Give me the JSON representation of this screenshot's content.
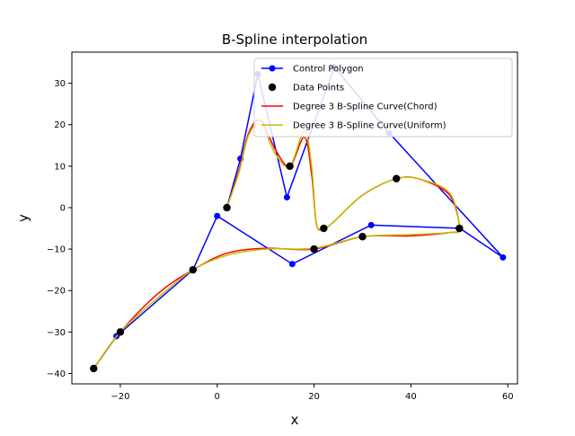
{
  "chart_data": {
    "type": "line",
    "title": "B-Spline interpolation",
    "xlabel": "x",
    "ylabel": "y",
    "xlim": [
      -30,
      62
    ],
    "ylim": [
      -42.5,
      37.5
    ],
    "xticks": [
      -20,
      0,
      20,
      40,
      60
    ],
    "yticks": [
      -40,
      -30,
      -20,
      -10,
      0,
      10,
      20,
      30
    ],
    "grid": false,
    "legend_position": "top-right",
    "series": [
      {
        "name": "Control Polygon",
        "kind": "line-marker",
        "color": "#0000ff",
        "x": [
          -25.5,
          -20.8,
          -5.0,
          0.0,
          15.5,
          31.8,
          50.1,
          59.0,
          35.5,
          24.2,
          14.4,
          8.4,
          4.8,
          2.0
        ],
        "y": [
          -38.8,
          -31.0,
          -15.0,
          -2.0,
          -13.6,
          -4.2,
          -5.0,
          -12.0,
          18.0,
          33.9,
          2.5,
          32.2,
          11.8,
          0.0
        ]
      },
      {
        "name": "Data Points",
        "kind": "scatter",
        "color": "#000000",
        "x": [
          -25.5,
          -20.0,
          -5.0,
          20.0,
          30.0,
          50.0,
          37.0,
          22.0,
          15.0,
          2.0
        ],
        "y": [
          -38.8,
          -30.0,
          -15.0,
          -10.0,
          -7.0,
          -5.0,
          7.0,
          -5.0,
          10.0,
          0.0
        ]
      },
      {
        "name": "Degree 3 B-Spline Curve(Chord)",
        "kind": "line",
        "color": "#ff0000",
        "x": [
          -25.5,
          -20.0,
          -12.0,
          -5.0,
          2.0,
          10.0,
          20.0,
          30.0,
          40.0,
          48.0,
          50.0,
          48.0,
          42.0,
          37.0,
          30.0,
          24.0,
          22.0,
          20.5,
          19.5,
          18.0,
          15.0,
          12.0,
          9.0,
          6.5,
          4.5,
          2.0
        ],
        "y": [
          -38.8,
          -30.0,
          -20.5,
          -15.0,
          -11.0,
          -9.8,
          -10.0,
          -7.0,
          -6.8,
          -6.0,
          -5.0,
          3.0,
          6.8,
          7.0,
          3.0,
          -3.5,
          -5.0,
          -4.0,
          8.0,
          17.0,
          10.0,
          14.0,
          21.0,
          18.0,
          9.0,
          0.0
        ]
      },
      {
        "name": "Degree 3 B-Spline Curve(Uniform)",
        "kind": "line",
        "color": "#bfbf00",
        "x": [
          -25.5,
          -20.0,
          -12.0,
          -5.0,
          2.0,
          10.0,
          20.0,
          30.0,
          40.0,
          48.0,
          50.0,
          48.0,
          42.0,
          37.0,
          30.0,
          24.0,
          22.0,
          20.5,
          19.5,
          18.0,
          15.0,
          12.0,
          9.0,
          6.5,
          4.5,
          2.0
        ],
        "y": [
          -38.8,
          -30.0,
          -21.5,
          -15.0,
          -11.5,
          -10.0,
          -9.8,
          -7.0,
          -6.5,
          -6.0,
          -5.0,
          3.5,
          6.8,
          7.0,
          3.0,
          -3.5,
          -5.0,
          -4.0,
          10.0,
          18.5,
          10.0,
          13.0,
          20.0,
          17.5,
          8.5,
          0.0
        ]
      }
    ]
  }
}
